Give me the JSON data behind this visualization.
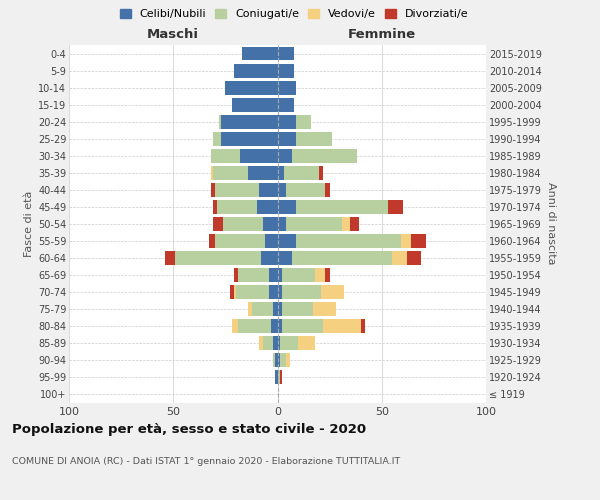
{
  "age_groups": [
    "100+",
    "95-99",
    "90-94",
    "85-89",
    "80-84",
    "75-79",
    "70-74",
    "65-69",
    "60-64",
    "55-59",
    "50-54",
    "45-49",
    "40-44",
    "35-39",
    "30-34",
    "25-29",
    "20-24",
    "15-19",
    "10-14",
    "5-9",
    "0-4"
  ],
  "birth_years": [
    "≤ 1919",
    "1920-1924",
    "1925-1929",
    "1930-1934",
    "1935-1939",
    "1940-1944",
    "1945-1949",
    "1950-1954",
    "1955-1959",
    "1960-1964",
    "1965-1969",
    "1970-1974",
    "1975-1979",
    "1980-1984",
    "1985-1989",
    "1990-1994",
    "1995-1999",
    "2000-2004",
    "2005-2009",
    "2010-2014",
    "2015-2019"
  ],
  "m_celibi": [
    0,
    1,
    1,
    2,
    3,
    2,
    4,
    4,
    8,
    6,
    7,
    10,
    9,
    14,
    18,
    27,
    27,
    22,
    25,
    21,
    17
  ],
  "m_coniugati": [
    0,
    0,
    1,
    5,
    16,
    10,
    16,
    15,
    41,
    24,
    19,
    19,
    21,
    17,
    14,
    4,
    1,
    0,
    0,
    0,
    0
  ],
  "m_vedovi": [
    0,
    0,
    0,
    2,
    3,
    2,
    1,
    0,
    0,
    0,
    0,
    0,
    0,
    1,
    0,
    0,
    0,
    0,
    0,
    0,
    0
  ],
  "m_divorziati": [
    0,
    0,
    0,
    0,
    0,
    0,
    2,
    2,
    5,
    3,
    5,
    2,
    2,
    0,
    0,
    0,
    0,
    0,
    0,
    0,
    0
  ],
  "f_nubili": [
    0,
    0,
    1,
    1,
    2,
    2,
    2,
    2,
    7,
    9,
    4,
    9,
    4,
    3,
    7,
    9,
    9,
    8,
    9,
    8,
    8
  ],
  "f_coniugate": [
    0,
    1,
    3,
    9,
    20,
    15,
    19,
    16,
    48,
    50,
    27,
    44,
    19,
    17,
    31,
    17,
    7,
    0,
    0,
    0,
    0
  ],
  "f_vedove": [
    0,
    0,
    2,
    8,
    18,
    11,
    11,
    5,
    7,
    5,
    4,
    0,
    0,
    0,
    0,
    0,
    0,
    0,
    0,
    0,
    0
  ],
  "f_divorziate": [
    0,
    1,
    0,
    0,
    2,
    0,
    0,
    2,
    7,
    7,
    4,
    7,
    2,
    2,
    0,
    0,
    0,
    0,
    0,
    0,
    0
  ],
  "colors": {
    "celibi": "#4472a8",
    "coniugati": "#b8cfa0",
    "vedovi": "#f5d080",
    "divorziati": "#c0392b"
  },
  "xlim": 100,
  "title": "Popolazione per età, sesso e stato civile - 2020",
  "subtitle": "COMUNE DI ANOIA (RC) - Dati ISTAT 1° gennaio 2020 - Elaborazione TUTTITALIA.IT",
  "ylabel_left": "Fasce di età",
  "ylabel_right": "Anni di nascita",
  "xlabel_left": "Maschi",
  "xlabel_right": "Femmine",
  "legend_labels": [
    "Celibi/Nubili",
    "Coniugati/e",
    "Vedovi/e",
    "Divorziati/e"
  ],
  "bg_color": "#f0f0f0",
  "plot_bg": "#ffffff"
}
